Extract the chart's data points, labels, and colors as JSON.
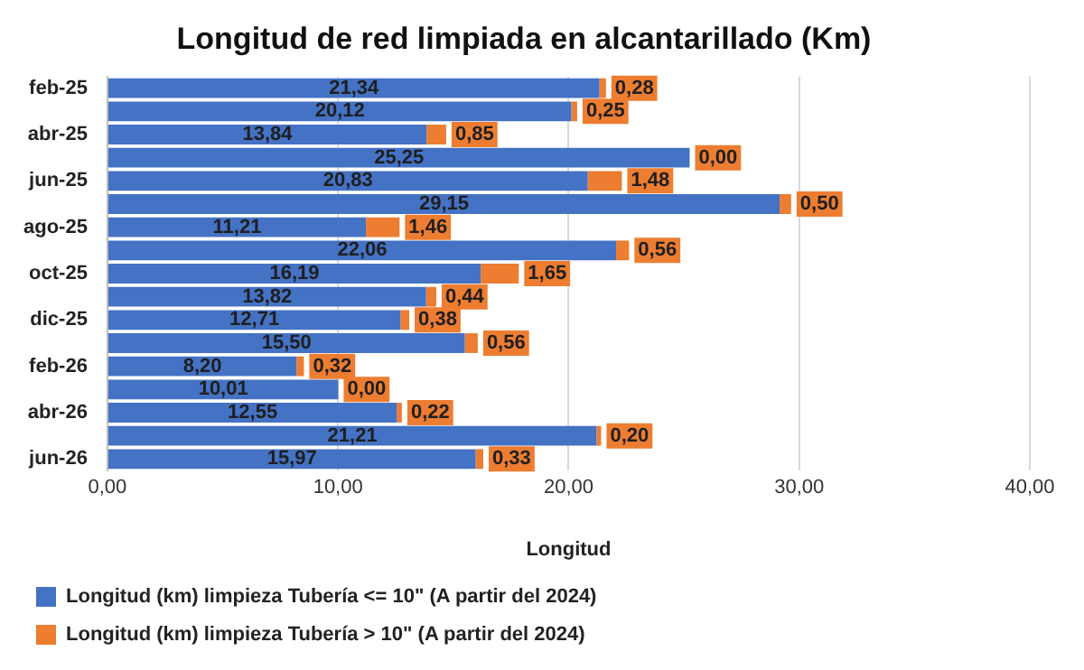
{
  "chart_data": {
    "type": "bar",
    "orientation": "horizontal",
    "stacked": true,
    "title": "Longitud de red limpiada en alcantarillado (Km)",
    "xlabel": "Longitud",
    "categories": [
      "feb-25",
      null,
      "abr-25",
      null,
      "jun-25",
      null,
      "ago-25",
      null,
      "oct-25",
      null,
      "dic-25",
      null,
      "feb-26",
      null,
      "abr-26",
      null,
      "jun-26"
    ],
    "series": [
      {
        "name": "Longitud (km) limpieza Tubería <= 10\" (A partir del 2024)",
        "color": "#4472c4",
        "values": [
          21.34,
          20.12,
          13.84,
          25.25,
          20.83,
          29.15,
          11.21,
          22.06,
          16.19,
          13.82,
          12.71,
          15.5,
          8.2,
          10.01,
          12.55,
          21.21,
          15.97
        ],
        "value_labels": [
          "21,34",
          "20,12",
          "13,84",
          "25,25",
          "20,83",
          "29,15",
          "11,21",
          "22,06",
          "16,19",
          "13,82",
          "12,71",
          "15,50",
          "8,20",
          "10,01",
          "12,55",
          "21,21",
          "15,97"
        ]
      },
      {
        "name": "Longitud (km) limpieza Tubería > 10\" (A partir del 2024)",
        "color": "#ed7d31",
        "values": [
          0.28,
          0.25,
          0.85,
          0.0,
          1.48,
          0.5,
          1.46,
          0.56,
          1.65,
          0.44,
          0.38,
          0.56,
          0.32,
          0.0,
          0.22,
          0.2,
          0.33
        ],
        "value_labels": [
          "0,28",
          "0,25",
          "0,85",
          "0,00",
          "1,48",
          "0,50",
          "1,46",
          "0,56",
          "1,65",
          "0,44",
          "0,38",
          "0,56",
          "0,32",
          "0,00",
          "0,22",
          "0,20",
          "0,33"
        ]
      }
    ],
    "xlim": [
      0,
      40
    ],
    "xticks": [
      {
        "value": 0,
        "label": "0,00"
      },
      {
        "value": 10,
        "label": "10,00"
      },
      {
        "value": 20,
        "label": "20,00"
      },
      {
        "value": 30,
        "label": "30,00"
      },
      {
        "value": 40,
        "label": "40,00"
      }
    ],
    "grid": "x",
    "legend": "bottom"
  }
}
